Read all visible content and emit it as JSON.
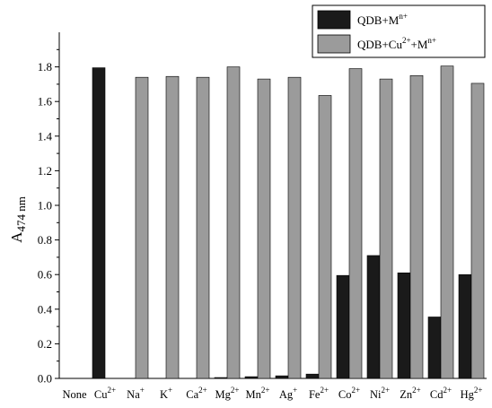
{
  "chart_data": {
    "type": "bar",
    "title": "",
    "xlabel": "",
    "ylabel": {
      "base": "A",
      "sub": "474 nm"
    },
    "ylim": [
      0,
      2.0
    ],
    "yticks": [
      "0.0",
      "0.2",
      "0.4",
      "0.6",
      "0.8",
      "1.0",
      "1.2",
      "1.4",
      "1.6",
      "1.8"
    ],
    "legend_position": "top-right",
    "categories": [
      {
        "base": "None",
        "sup": ""
      },
      {
        "base": "Cu",
        "sup": "2+"
      },
      {
        "base": "Na",
        "sup": "+"
      },
      {
        "base": "K",
        "sup": "+"
      },
      {
        "base": "Ca",
        "sup": "2+"
      },
      {
        "base": "Mg",
        "sup": "2+"
      },
      {
        "base": "Mn",
        "sup": "2+"
      },
      {
        "base": "Ag",
        "sup": "+"
      },
      {
        "base": "Fe",
        "sup": "2+"
      },
      {
        "base": "Co",
        "sup": "2+"
      },
      {
        "base": "Ni",
        "sup": "2+"
      },
      {
        "base": "Zn",
        "sup": "2+"
      },
      {
        "base": "Cd",
        "sup": "2+"
      },
      {
        "base": "Hg",
        "sup": "2+"
      }
    ],
    "series": [
      {
        "legend": {
          "parts": [
            {
              "t": "QDB+M",
              "sup": false
            },
            {
              "t": "n+",
              "sup": true
            }
          ]
        },
        "color": "#1a1a1a",
        "values": [
          0.0,
          1.795,
          0.0,
          0.0,
          0.0,
          0.005,
          0.01,
          0.015,
          0.025,
          0.595,
          0.71,
          0.61,
          0.355,
          0.6
        ]
      },
      {
        "legend": {
          "parts": [
            {
              "t": "QDB+Cu",
              "sup": false
            },
            {
              "t": "2+",
              "sup": true
            },
            {
              "t": "+M",
              "sup": false
            },
            {
              "t": "n+",
              "sup": true
            }
          ]
        },
        "color": "#9b9b9b",
        "values": [
          0.0,
          0.0,
          1.74,
          1.745,
          1.74,
          1.8,
          1.73,
          1.74,
          1.635,
          1.79,
          1.73,
          1.75,
          1.805,
          1.705
        ]
      }
    ]
  }
}
